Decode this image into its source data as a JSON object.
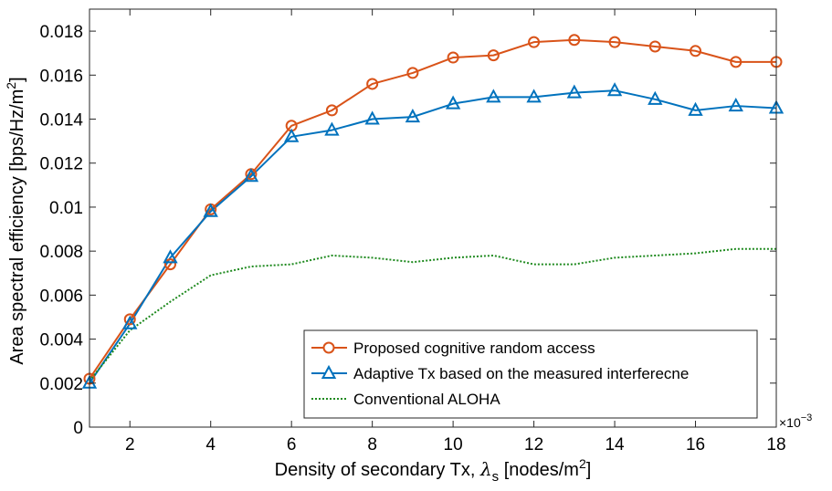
{
  "chart_data": {
    "type": "line",
    "title": "",
    "xlabel": "Density of secondary Tx, λs [nodes/m²]",
    "xlabel_parts": {
      "main": "Density of secondary Tx, ",
      "symbol": "λ",
      "sub": "s",
      "units": " [nodes/m",
      "sup": "2",
      "close": "]"
    },
    "ylabel": "Area spectral efficiency [bps/Hz/m²]",
    "ylabel_parts": {
      "main": "Area spectral efficiency [bps/Hz/m",
      "sup": "2",
      "close": "]"
    },
    "x_multiplier": "×10⁻³",
    "x_multiplier_parts": {
      "base": "×10",
      "exp": "−3"
    },
    "xlim": [
      1,
      18
    ],
    "ylim": [
      0,
      0.019
    ],
    "x_ticks": [
      2,
      4,
      6,
      8,
      10,
      12,
      14,
      16,
      18
    ],
    "x_tick_labels": [
      "2",
      "4",
      "6",
      "8",
      "10",
      "12",
      "14",
      "16",
      "18"
    ],
    "y_ticks": [
      0,
      0.002,
      0.004,
      0.006,
      0.008,
      0.01,
      0.012,
      0.014,
      0.016,
      0.018
    ],
    "y_tick_labels": [
      "0",
      "0.002",
      "0.004",
      "0.006",
      "0.008",
      "0.01",
      "0.012",
      "0.014",
      "0.016",
      "0.018"
    ],
    "grid": false,
    "legend_position": "bottom-right",
    "x": [
      1,
      2,
      3,
      4,
      5,
      6,
      7,
      8,
      9,
      10,
      11,
      12,
      13,
      14,
      15,
      16,
      17,
      18
    ],
    "series": [
      {
        "name": "Proposed cognitive random access",
        "color": "#d95319",
        "marker": "circle",
        "linestyle": "solid",
        "values": [
          0.0022,
          0.0049,
          0.0074,
          0.0099,
          0.0115,
          0.0137,
          0.0144,
          0.0156,
          0.0161,
          0.0168,
          0.0169,
          0.0175,
          0.0176,
          0.0175,
          0.0173,
          0.0171,
          0.0166,
          0.0166
        ]
      },
      {
        "name": "Adaptive Tx based on the measured interferecne",
        "color": "#0072bd",
        "marker": "triangle",
        "linestyle": "solid",
        "values": [
          0.002,
          0.0047,
          0.0077,
          0.0098,
          0.0114,
          0.0132,
          0.0135,
          0.014,
          0.0141,
          0.0147,
          0.015,
          0.015,
          0.0152,
          0.0153,
          0.0149,
          0.0144,
          0.0146,
          0.0145
        ]
      },
      {
        "name": "Conventional ALOHA",
        "color": "#1f8a1f",
        "marker": "none",
        "linestyle": "dotted",
        "values": [
          0.0021,
          0.0044,
          0.0057,
          0.0069,
          0.0073,
          0.0074,
          0.0078,
          0.0077,
          0.0075,
          0.0077,
          0.0078,
          0.0074,
          0.0074,
          0.0077,
          0.0078,
          0.0079,
          0.0081,
          0.0081
        ]
      }
    ]
  }
}
